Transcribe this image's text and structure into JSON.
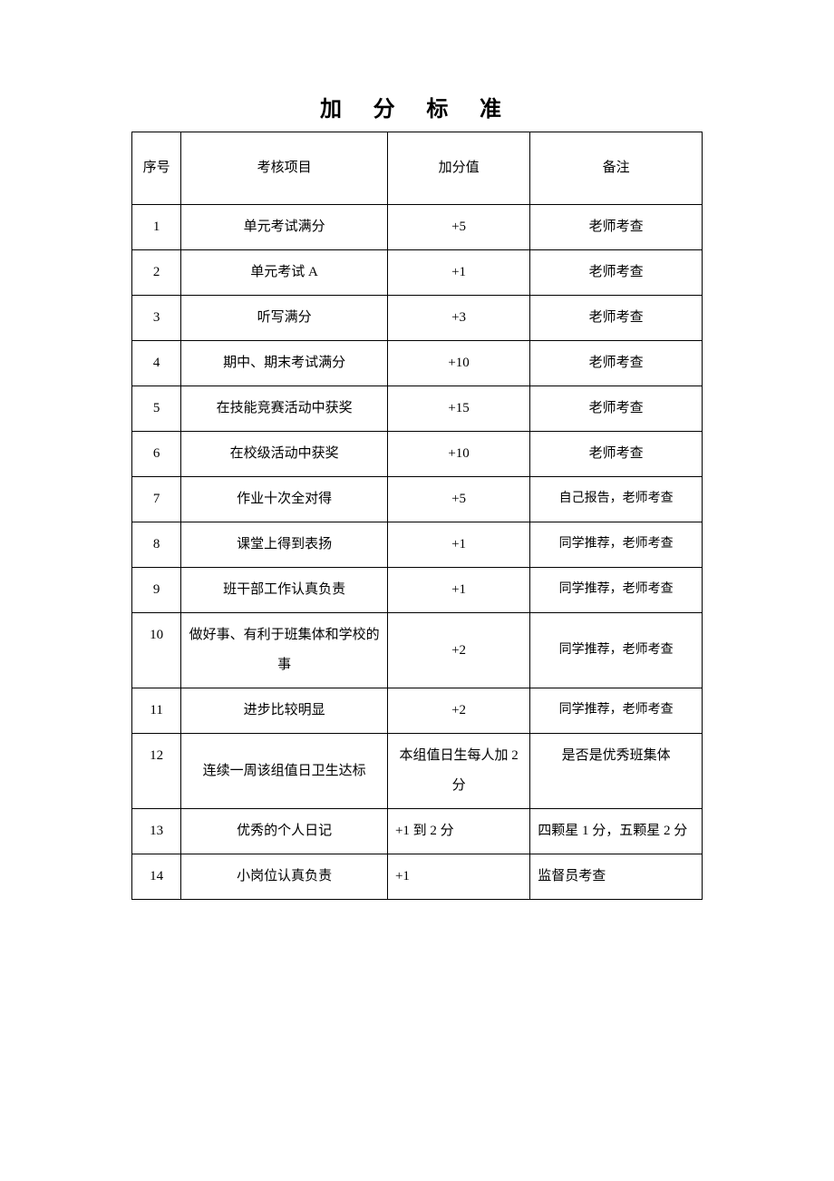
{
  "title": "加 分 标 准",
  "headers": {
    "seq": "序号",
    "item": "考核项目",
    "value": "加分值",
    "note": "备注"
  },
  "rows": [
    {
      "seq": "1",
      "item": "单元考试满分",
      "value": "+5",
      "note": "老师考查",
      "noteSmall": false,
      "valueLeft": false,
      "noteLeft": false
    },
    {
      "seq": "2",
      "item": "单元考试 A",
      "value": "+1",
      "note": "老师考查",
      "noteSmall": false,
      "valueLeft": false,
      "noteLeft": false
    },
    {
      "seq": "3",
      "item": "听写满分",
      "value": "+3",
      "note": "老师考查",
      "noteSmall": false,
      "valueLeft": false,
      "noteLeft": false
    },
    {
      "seq": "4",
      "item": "期中、期末考试满分",
      "value": "+10",
      "note": "老师考查",
      "noteSmall": false,
      "valueLeft": false,
      "noteLeft": false
    },
    {
      "seq": "5",
      "item": "在技能竞赛活动中获奖",
      "value": "+15",
      "note": "老师考查",
      "noteSmall": false,
      "valueLeft": false,
      "noteLeft": false
    },
    {
      "seq": "6",
      "item": "在校级活动中获奖",
      "value": "+10",
      "note": "老师考查",
      "noteSmall": false,
      "valueLeft": false,
      "noteLeft": false
    },
    {
      "seq": "7",
      "item": "作业十次全对得",
      "value": "+5",
      "note": "自己报告，老师考查",
      "noteSmall": true,
      "valueLeft": false,
      "noteLeft": false
    },
    {
      "seq": "8",
      "item": "课堂上得到表扬",
      "value": "+1",
      "note": "同学推荐，老师考查",
      "noteSmall": true,
      "valueLeft": false,
      "noteLeft": false
    },
    {
      "seq": "9",
      "item": "班干部工作认真负责",
      "value": "+1",
      "note": "同学推荐，老师考查",
      "noteSmall": true,
      "valueLeft": false,
      "noteLeft": false
    },
    {
      "seq": "10",
      "item": "做好事、有利于班集体和学校的事",
      "value": "+2",
      "note": "同学推荐，老师考查",
      "noteSmall": true,
      "valueLeft": false,
      "noteLeft": false,
      "seqTop": true
    },
    {
      "seq": "11",
      "item": "进步比较明显",
      "value": "+2",
      "note": "同学推荐，老师考查",
      "noteSmall": true,
      "valueLeft": false,
      "noteLeft": false
    },
    {
      "seq": "12",
      "item": "连续一周该组值日卫生达标",
      "value": "本组值日生每人加 2 分",
      "note": "是否是优秀班集体",
      "noteSmall": false,
      "valueLeft": false,
      "noteLeft": false,
      "seqTop": true,
      "noteTop": true
    },
    {
      "seq": "13",
      "item": "优秀的个人日记",
      "value": "+1 到 2 分",
      "note": "四颗星 1 分，五颗星 2 分",
      "noteSmall": false,
      "valueLeft": true,
      "noteLeft": true,
      "seqTop": true,
      "itemTop": true
    },
    {
      "seq": "14",
      "item": "小岗位认真负责",
      "value": "+1",
      "note": "监督员考查",
      "noteSmall": false,
      "valueLeft": true,
      "noteLeft": true
    }
  ]
}
